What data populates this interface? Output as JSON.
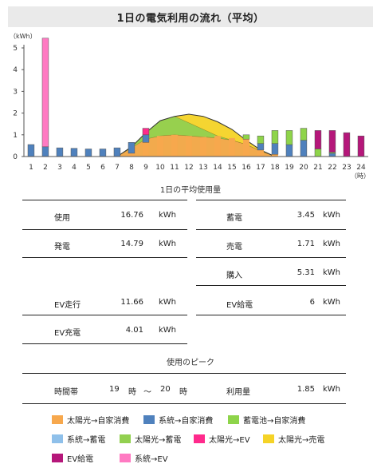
{
  "title": "1日の電気利用の流れ（平均）",
  "colors": {
    "solar_self": "#f7a84d",
    "grid_self": "#4f81bd",
    "battery_self": "#8ed44a",
    "grid_battery": "#8fc0ea",
    "solar_battery": "#92d050",
    "solar_ev": "#ff2a8c",
    "solar_sell": "#f5d327",
    "ev_supply": "#b5177a",
    "grid_ev": "#ff7ac2"
  },
  "chart_data": {
    "type": "bar",
    "ylabel": "（kWh）",
    "xlabel": "（時）",
    "ylim": [
      0,
      5
    ],
    "yticks": [
      "0",
      "1",
      "2",
      "3",
      "4",
      "5"
    ],
    "categories": [
      "1",
      "2",
      "3",
      "4",
      "5",
      "6",
      "7",
      "8",
      "9",
      "10",
      "11",
      "12",
      "13",
      "14",
      "15",
      "16",
      "17",
      "18",
      "19",
      "20",
      "21",
      "22",
      "23",
      "24"
    ],
    "series": [
      {
        "name": "太陽光→自家消費",
        "values": [
          0,
          0,
          0,
          0,
          0,
          0,
          0,
          0.15,
          0.65,
          0.95,
          1.0,
          0.95,
          0.9,
          0.95,
          0.85,
          0.8,
          0.3,
          0.1,
          0,
          0,
          0,
          0,
          0,
          0
        ]
      },
      {
        "name": "系統→自家消費",
        "values": [
          0.55,
          0.45,
          0.4,
          0.38,
          0.35,
          0.35,
          0.4,
          0.5,
          0.35,
          0,
          0,
          0,
          0,
          0,
          0,
          0,
          0.3,
          0.5,
          0.55,
          0.75,
          0,
          0.15,
          0,
          0
        ]
      },
      {
        "name": "蓄電池→自家消費",
        "values": [
          0,
          0,
          0,
          0,
          0,
          0,
          0,
          0,
          0,
          0,
          0,
          0,
          0,
          0,
          0,
          0.2,
          0.35,
          0.6,
          0.65,
          0.55,
          0.35,
          0.05,
          0,
          0
        ]
      },
      {
        "name": "系統→蓄電",
        "values": [
          0,
          0,
          0,
          0,
          0,
          0,
          0,
          0,
          0,
          0,
          0,
          0,
          0,
          0,
          0,
          0,
          0,
          0,
          0,
          0,
          0,
          0,
          0,
          0
        ]
      },
      {
        "name": "太陽光→蓄電",
        "values": [
          0,
          0,
          0,
          0,
          0,
          0,
          0,
          0,
          0,
          0,
          0,
          0,
          0,
          0,
          0,
          0,
          0,
          0,
          0,
          0,
          0,
          0,
          0,
          0
        ]
      },
      {
        "name": "太陽光→EV",
        "values": [
          0,
          0,
          0,
          0,
          0,
          0,
          0,
          0,
          0.3,
          0,
          0,
          0,
          0,
          0,
          0,
          0,
          0,
          0,
          0,
          0,
          0,
          0,
          0,
          0
        ]
      },
      {
        "name": "太陽光→売電",
        "values": [
          0,
          0,
          0,
          0,
          0,
          0,
          0,
          0,
          0,
          0,
          0,
          0,
          0,
          0,
          0,
          0,
          0,
          0,
          0,
          0,
          0,
          0,
          0,
          0
        ]
      },
      {
        "name": "EV給電",
        "values": [
          0,
          0,
          0,
          0,
          0,
          0,
          0,
          0,
          0,
          0,
          0,
          0,
          0,
          0,
          0,
          0,
          0,
          0,
          0,
          0,
          0.85,
          1.0,
          1.1,
          0.95
        ]
      },
      {
        "name": "系統→EV",
        "values": [
          0,
          5.0,
          0,
          0,
          0,
          0,
          0,
          0,
          0,
          0,
          0,
          0,
          0,
          0,
          0,
          0,
          0,
          0,
          0,
          0,
          0,
          0,
          0,
          0
        ]
      }
    ],
    "area_x": [
      7,
      8,
      9,
      10,
      11,
      12,
      13,
      14,
      15,
      16,
      17,
      18
    ],
    "area_series": [
      {
        "name": "太陽光→自家消費",
        "values": [
          0,
          0.4,
          0.8,
          0.95,
          1.0,
          0.95,
          0.9,
          0.85,
          0.75,
          0.55,
          0.25,
          0
        ]
      },
      {
        "name": "太陽光→蓄電",
        "values": [
          0,
          0.45,
          1.1,
          1.65,
          1.85,
          1.55,
          1.25,
          0.95,
          0.75,
          0.55,
          0.25,
          0
        ]
      },
      {
        "name": "太陽光→売電",
        "values": [
          0,
          0.45,
          1.1,
          1.65,
          1.85,
          1.95,
          1.85,
          1.6,
          1.25,
          0.75,
          0.3,
          0
        ]
      }
    ]
  },
  "avg_usage": {
    "title": "1日の平均使用量",
    "left": [
      {
        "label": "使用",
        "value": "16.76",
        "unit": "kWh"
      },
      {
        "label": "発電",
        "value": "14.79",
        "unit": "kWh"
      }
    ],
    "right": [
      {
        "label": "蓄電",
        "value": "3.45",
        "unit": "kWh"
      },
      {
        "label": "売電",
        "value": "1.71",
        "unit": "kWh"
      },
      {
        "label": "購入",
        "value": "5.31",
        "unit": "kWh"
      }
    ],
    "ev_left": [
      {
        "label": "EV走行",
        "value": "11.66",
        "unit": "kWh"
      },
      {
        "label": "EV充電",
        "value": "4.01",
        "unit": "kWh"
      }
    ],
    "ev_right": [
      {
        "label": "EV給電",
        "value": "6",
        "unit": "kWh"
      }
    ]
  },
  "peak": {
    "title": "使用のピーク",
    "time_label": "時間帯",
    "start": "19",
    "hour1": "時",
    "tilde": "～",
    "end": "20",
    "hour2": "時",
    "usage_label": "利用量",
    "usage_value": "1.85",
    "usage_unit": "kWh"
  },
  "legend": [
    {
      "label": "太陽光→自家消費",
      "color": "#f7a84d"
    },
    {
      "label": "系統→自家消費",
      "color": "#4f81bd"
    },
    {
      "label": "蓄電池→自家消費",
      "color": "#8ed44a"
    },
    {
      "label": "系統→蓄電",
      "color": "#8fc0ea"
    },
    {
      "label": "太陽光→蓄電",
      "color": "#92d050"
    },
    {
      "label": "太陽光→EV",
      "color": "#ff2a8c"
    },
    {
      "label": "太陽光→売電",
      "color": "#f5d327"
    },
    {
      "label": "EV給電",
      "color": "#b5177a"
    },
    {
      "label": "系統→EV",
      "color": "#ff7ac2"
    }
  ]
}
